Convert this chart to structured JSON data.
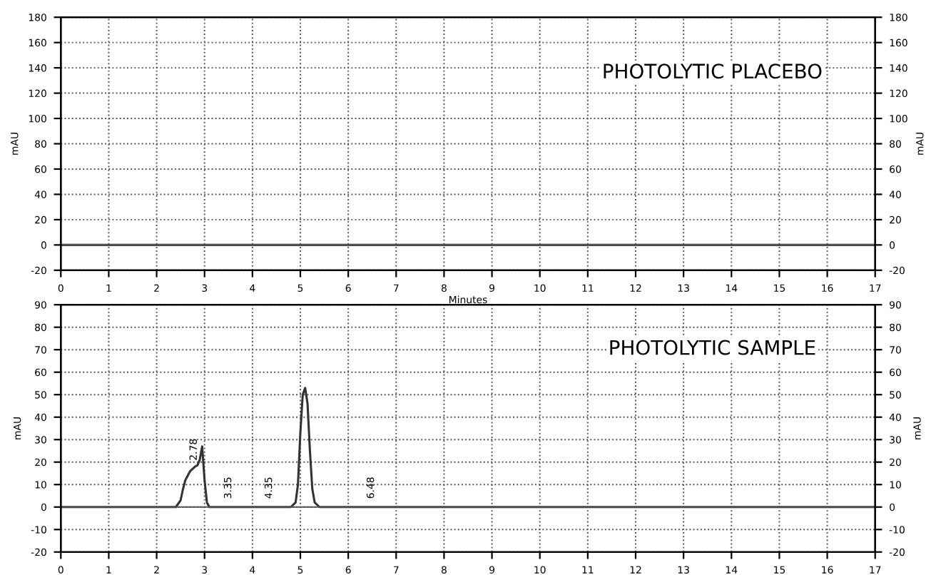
{
  "chart_data": [
    {
      "type": "line",
      "title": "PHOTOLYTIC PLACEBO",
      "xlabel": "Minutes",
      "ylabel": "mAU",
      "y2label": "mAU",
      "x": [
        0,
        17
      ],
      "series": [
        {
          "color": "#333333",
          "values": [
            0,
            0
          ]
        }
      ],
      "xlim": [
        0,
        17
      ],
      "xticks": [
        0,
        1,
        2,
        3,
        4,
        5,
        6,
        7,
        8,
        9,
        10,
        11,
        12,
        13,
        14,
        15,
        16,
        17
      ],
      "ylim": [
        -20,
        180
      ],
      "yticks": [
        -20,
        0,
        20,
        40,
        60,
        80,
        100,
        120,
        140,
        160,
        180
      ],
      "y2lim": [
        -20,
        180
      ],
      "y2ticks": [
        -20,
        0,
        20,
        40,
        60,
        80,
        100,
        120,
        140,
        160,
        180
      ],
      "grid": true,
      "line_style": "solid"
    },
    {
      "type": "line",
      "title": "PHOTOLYTIC SAMPLE",
      "ylabel": "mAU",
      "y2label": "mAU",
      "x": [
        0,
        2.4,
        2.5,
        2.55,
        2.6,
        2.7,
        2.8,
        2.85,
        2.9,
        2.95,
        3.0,
        3.05,
        3.1,
        4.8,
        4.9,
        4.95,
        5.0,
        5.05,
        5.1,
        5.15,
        5.2,
        5.25,
        5.3,
        5.4,
        17
      ],
      "series": [
        {
          "color": "#333333",
          "values": [
            0,
            0,
            3,
            8,
            12,
            16,
            18,
            18.5,
            21,
            27,
            12,
            2,
            0,
            0,
            2,
            10,
            33,
            50,
            53,
            46,
            25,
            8,
            2,
            0,
            0
          ]
        }
      ],
      "annotations": [
        {
          "text": "2.78",
          "x": 2.78,
          "y": 18
        },
        {
          "text": "3.35",
          "x": 3.5,
          "y": 1
        },
        {
          "text": "4.35",
          "x": 4.35,
          "y": 1
        },
        {
          "text": "6.48",
          "x": 6.48,
          "y": 1
        }
      ],
      "xlim": [
        0,
        17
      ],
      "xticks": [
        0,
        1,
        2,
        3,
        4,
        5,
        6,
        7,
        8,
        9,
        10,
        11,
        12,
        13,
        14,
        15,
        16,
        17
      ],
      "ylim": [
        -20,
        90
      ],
      "yticks": [
        -20,
        -10,
        0,
        10,
        20,
        30,
        40,
        50,
        60,
        70,
        80,
        90
      ],
      "y2lim": [
        -20,
        90
      ],
      "y2ticks": [
        -20,
        -10,
        0,
        10,
        20,
        30,
        40,
        50,
        60,
        70,
        80,
        90
      ],
      "grid": true,
      "line_style": "solid"
    }
  ]
}
